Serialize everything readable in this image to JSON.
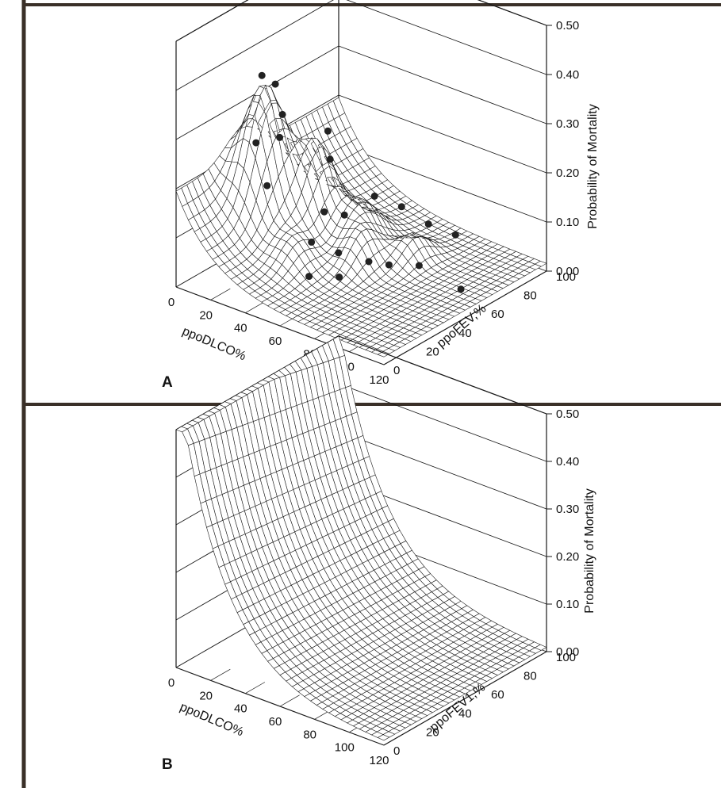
{
  "colors": {
    "ink": "#1a1a1a",
    "border": "#3a3028",
    "paper": "#ffffff"
  },
  "chart_data": [
    {
      "type": "surface",
      "panel_label": "A",
      "xlabel": "ppoDLCO%",
      "ylabel": "ppoFEV,%",
      "zlabel": "Probability of Mortality",
      "x_ticks": [
        "0",
        "20",
        "40",
        "60",
        "80",
        "100",
        "120"
      ],
      "y_ticks": [
        "0",
        "20",
        "40",
        "60",
        "80",
        "100"
      ],
      "z_ticks": [
        "0.00",
        "0.10",
        "0.20",
        "0.30",
        "0.40",
        "0.50"
      ],
      "xlim": [
        0,
        120
      ],
      "ylim": [
        0,
        100
      ],
      "zlim": [
        0,
        0.5
      ],
      "surface": "kernel-smoothed observed mortality with peaks at low ppoDLCO",
      "observed_points": [
        {
          "x": 12,
          "y": 40,
          "z": 0.37
        },
        {
          "x": 16,
          "y": 44,
          "z": 0.35
        },
        {
          "x": 18,
          "y": 30,
          "z": 0.26
        },
        {
          "x": 22,
          "y": 42,
          "z": 0.3
        },
        {
          "x": 26,
          "y": 36,
          "z": 0.27
        },
        {
          "x": 30,
          "y": 24,
          "z": 0.2
        },
        {
          "x": 36,
          "y": 55,
          "z": 0.26
        },
        {
          "x": 42,
          "y": 50,
          "z": 0.22
        },
        {
          "x": 48,
          "y": 40,
          "z": 0.14
        },
        {
          "x": 50,
          "y": 30,
          "z": 0.1
        },
        {
          "x": 54,
          "y": 46,
          "z": 0.13
        },
        {
          "x": 58,
          "y": 20,
          "z": 0.06
        },
        {
          "x": 60,
          "y": 36,
          "z": 0.08
        },
        {
          "x": 62,
          "y": 56,
          "z": 0.16
        },
        {
          "x": 66,
          "y": 30,
          "z": 0.05
        },
        {
          "x": 70,
          "y": 44,
          "z": 0.06
        },
        {
          "x": 72,
          "y": 62,
          "z": 0.14
        },
        {
          "x": 76,
          "y": 50,
          "z": 0.05
        },
        {
          "x": 80,
          "y": 70,
          "z": 0.1
        },
        {
          "x": 84,
          "y": 60,
          "z": 0.04
        },
        {
          "x": 90,
          "y": 76,
          "z": 0.08
        },
        {
          "x": 110,
          "y": 58,
          "z": 0.03
        }
      ]
    },
    {
      "type": "surface",
      "panel_label": "B",
      "xlabel": "ppoDLCO%",
      "ylabel": "ppoFEV1,%",
      "zlabel": "Probability of Mortality",
      "x_ticks": [
        "0",
        "20",
        "40",
        "60",
        "80",
        "100",
        "120"
      ],
      "y_ticks": [
        "0",
        "20",
        "40",
        "60",
        "80",
        "100"
      ],
      "z_ticks": [
        "0.00",
        "0.10",
        "0.20",
        "0.30",
        "0.40",
        "0.50"
      ],
      "xlim": [
        0,
        120
      ],
      "ylim": [
        0,
        100
      ],
      "zlim": [
        0,
        0.5
      ],
      "surface": "logistic model, mortality decreasing with ppoDLCO"
    }
  ]
}
